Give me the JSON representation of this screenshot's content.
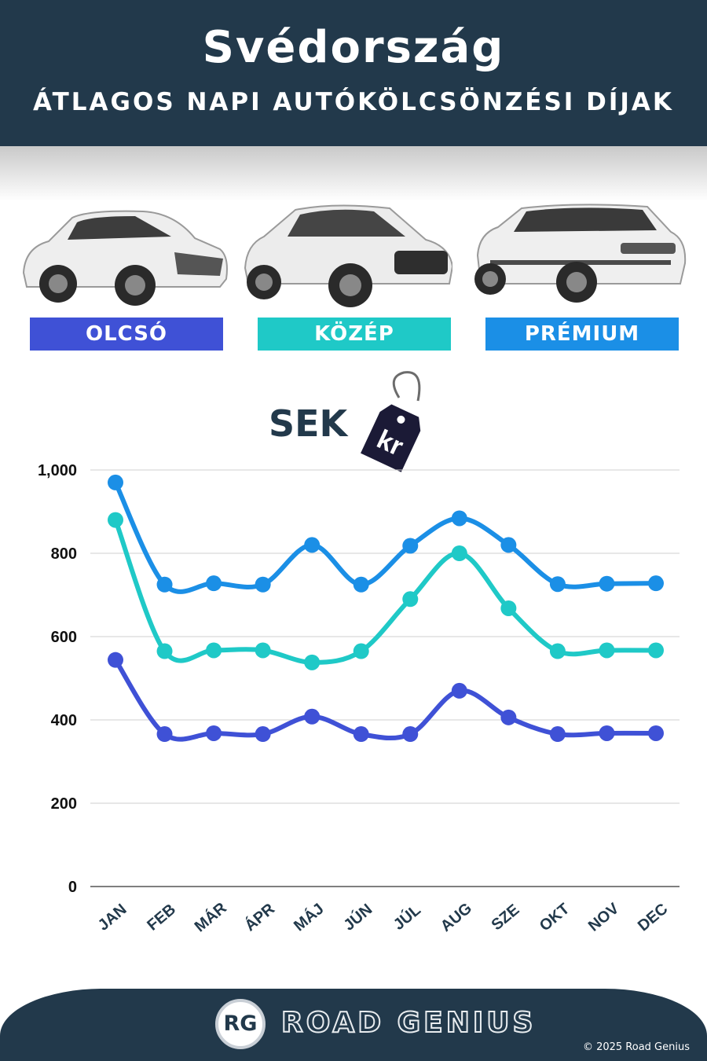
{
  "header": {
    "title": "Svédország",
    "subtitle": "ÁTLAGOS NAPI AUTÓKÖLCSÖNZÉSI DÍJAK"
  },
  "categories": [
    {
      "label": "OLCSÓ",
      "color": "#3f51d6"
    },
    {
      "label": "KÖZÉP",
      "color": "#1fc9c7"
    },
    {
      "label": "PRÉMIUM",
      "color": "#1b8fe6"
    }
  ],
  "currency": {
    "label": "SEK",
    "tag_text": "kr"
  },
  "chart_data": {
    "type": "line",
    "categories": [
      "JAN",
      "FEB",
      "MÁR",
      "ÁPR",
      "MÁJ",
      "JÚN",
      "JÚL",
      "AUG",
      "SZE",
      "OKT",
      "NOV",
      "DEC"
    ],
    "series": [
      {
        "name": "PRÉMIUM",
        "color": "#1b8fe6",
        "values": [
          970,
          725,
          728,
          725,
          820,
          725,
          818,
          884,
          820,
          726,
          727,
          728
        ]
      },
      {
        "name": "KÖZÉP",
        "color": "#1fc9c7",
        "values": [
          880,
          565,
          567,
          567,
          538,
          565,
          690,
          800,
          668,
          565,
          567,
          567
        ]
      },
      {
        "name": "OLCSÓ",
        "color": "#3f51d6",
        "values": [
          544,
          366,
          368,
          366,
          408,
          366,
          366,
          470,
          406,
          366,
          368,
          368
        ]
      }
    ],
    "yticks": [
      "0",
      "200",
      "400",
      "600",
      "800",
      "1,000"
    ],
    "ylim": [
      0,
      1000
    ],
    "grid": true
  },
  "footer": {
    "logo": "RG",
    "brand": "ROAD GENIUS",
    "copyright": "© 2025 Road Genius"
  }
}
